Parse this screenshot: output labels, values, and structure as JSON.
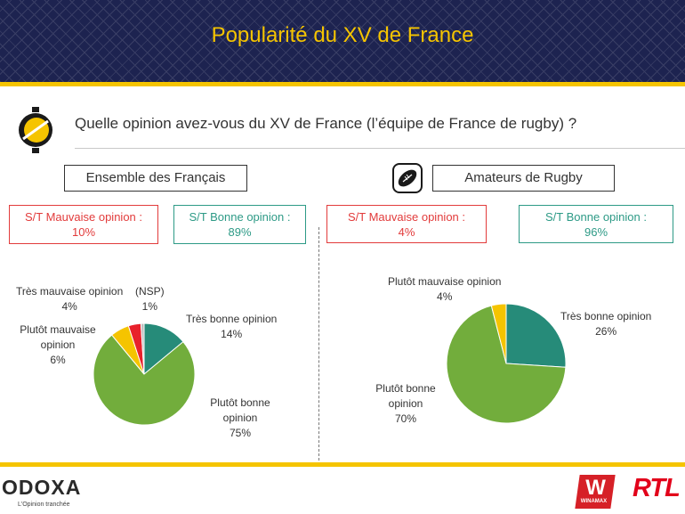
{
  "header": {
    "title": "Popularité du XV de France"
  },
  "question": "Quelle opinion avez-vous du XV de France (l’équipe de France de rugby) ?",
  "left": {
    "group_label": "Ensemble des Français",
    "bad": {
      "label": "S/T Mauvaise opinion :",
      "value": "10%"
    },
    "good": {
      "label": "S/T Bonne opinion :",
      "value": "89%"
    }
  },
  "right": {
    "group_label": "Amateurs de Rugby",
    "bad": {
      "label": "S/T Mauvaise opinion :",
      "value": "4%"
    },
    "good": {
      "label": "S/T Bonne opinion :",
      "value": "96%"
    }
  },
  "colors": {
    "tres_bonne": "#268b79",
    "plutot_bonne": "#72ad3c",
    "plutot_mauvaise": "#f5c400",
    "tres_mauvaise": "#e8212b",
    "nsp": "#bdbdbd",
    "brand_yellow": "#f5c400",
    "brand_navy": "#1d2350"
  },
  "chart_data": [
    {
      "type": "pie",
      "group": "Ensemble des Français",
      "slices": [
        {
          "label": "Très bonne opinion",
          "value": 14,
          "display": "14%",
          "color": "#268b79"
        },
        {
          "label": "Plutôt bonne opinion",
          "value": 75,
          "display": "75%",
          "color": "#72ad3c"
        },
        {
          "label": "Plutôt mauvaise opinion",
          "value": 6,
          "display": "6%",
          "color": "#f5c400"
        },
        {
          "label": "Très mauvaise opinion",
          "value": 4,
          "display": "4%",
          "color": "#e8212b"
        },
        {
          "label": "(NSP)",
          "value": 1,
          "display": "1%",
          "color": "#bdbdbd"
        }
      ]
    },
    {
      "type": "pie",
      "group": "Amateurs de Rugby",
      "slices": [
        {
          "label": "Très bonne opinion",
          "value": 26,
          "display": "26%",
          "color": "#268b79"
        },
        {
          "label": "Plutôt bonne opinion",
          "value": 70,
          "display": "70%",
          "color": "#72ad3c"
        },
        {
          "label": "Plutôt mauvaise opinion",
          "value": 4,
          "display": "4%",
          "color": "#f5c400"
        }
      ]
    }
  ],
  "footer": {
    "brand": "ODOXA",
    "tagline": "L'Opinion tranchée",
    "partner1": "WINAMAX",
    "partner2": "RTL"
  }
}
